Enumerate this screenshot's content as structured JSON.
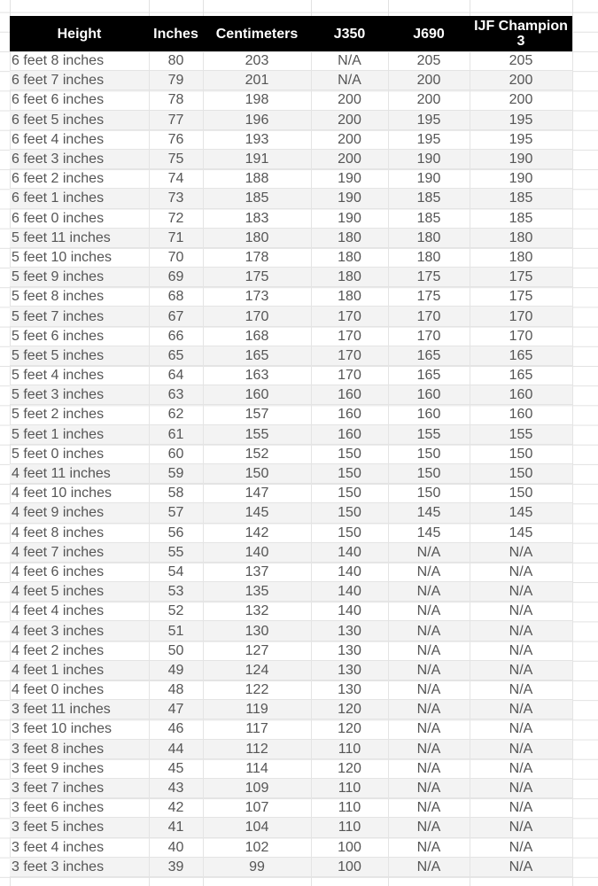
{
  "columns": [
    "Height",
    "Inches",
    "Centimeters",
    "J350",
    "J690",
    "IJF Champion 3"
  ],
  "rows": [
    [
      "6 feet 8 inches",
      "80",
      "203",
      "N/A",
      "205",
      "205"
    ],
    [
      "6 feet 7 inches",
      "79",
      "201",
      "N/A",
      "200",
      "200"
    ],
    [
      "6 feet 6 inches",
      "78",
      "198",
      "200",
      "200",
      "200"
    ],
    [
      "6 feet 5 inches",
      "77",
      "196",
      "200",
      "195",
      "195"
    ],
    [
      "6 feet 4 inches",
      "76",
      "193",
      "200",
      "195",
      "195"
    ],
    [
      "6 feet 3 inches",
      "75",
      "191",
      "200",
      "190",
      "190"
    ],
    [
      "6 feet 2 inches",
      "74",
      "188",
      "190",
      "190",
      "190"
    ],
    [
      "6 feet 1 inches",
      "73",
      "185",
      "190",
      "185",
      "185"
    ],
    [
      "6 feet 0 inches",
      "72",
      "183",
      "190",
      "185",
      "185"
    ],
    [
      "5 feet 11 inches",
      "71",
      "180",
      "180",
      "180",
      "180"
    ],
    [
      "5 feet 10 inches",
      "70",
      "178",
      "180",
      "180",
      "180"
    ],
    [
      "5 feet 9 inches",
      "69",
      "175",
      "180",
      "175",
      "175"
    ],
    [
      "5 feet 8 inches",
      "68",
      "173",
      "180",
      "175",
      "175"
    ],
    [
      "5 feet 7 inches",
      "67",
      "170",
      "170",
      "170",
      "170"
    ],
    [
      "5 feet 6 inches",
      "66",
      "168",
      "170",
      "170",
      "170"
    ],
    [
      "5 feet 5 inches",
      "65",
      "165",
      "170",
      "165",
      "165"
    ],
    [
      "5 feet 4 inches",
      "64",
      "163",
      "170",
      "165",
      "165"
    ],
    [
      "5 feet 3 inches",
      "63",
      "160",
      "160",
      "160",
      "160"
    ],
    [
      "5 feet 2 inches",
      "62",
      "157",
      "160",
      "160",
      "160"
    ],
    [
      "5 feet 1 inches",
      "61",
      "155",
      "160",
      "155",
      "155"
    ],
    [
      "5 feet 0 inches",
      "60",
      "152",
      "150",
      "150",
      "150"
    ],
    [
      "4 feet 11 inches",
      "59",
      "150",
      "150",
      "150",
      "150"
    ],
    [
      "4 feet 10 inches",
      "58",
      "147",
      "150",
      "150",
      "150"
    ],
    [
      "4 feet 9 inches",
      "57",
      "145",
      "150",
      "145",
      "145"
    ],
    [
      "4 feet 8 inches",
      "56",
      "142",
      "150",
      "145",
      "145"
    ],
    [
      "4 feet 7 inches",
      "55",
      "140",
      "140",
      "N/A",
      "N/A"
    ],
    [
      "4 feet 6 inches",
      "54",
      "137",
      "140",
      "N/A",
      "N/A"
    ],
    [
      "4 feet 5 inches",
      "53",
      "135",
      "140",
      "N/A",
      "N/A"
    ],
    [
      "4 feet 4 inches",
      "52",
      "132",
      "140",
      "N/A",
      "N/A"
    ],
    [
      "4 feet 3 inches",
      "51",
      "130",
      "130",
      "N/A",
      "N/A"
    ],
    [
      "4 feet 2 inches",
      "50",
      "127",
      "130",
      "N/A",
      "N/A"
    ],
    [
      "4 feet 1 inches",
      "49",
      "124",
      "130",
      "N/A",
      "N/A"
    ],
    [
      "4 feet 0 inches",
      "48",
      "122",
      "130",
      "N/A",
      "N/A"
    ],
    [
      "3 feet 11 inches",
      "47",
      "119",
      "120",
      "N/A",
      "N/A"
    ],
    [
      "3 feet 10 inches",
      "46",
      "117",
      "120",
      "N/A",
      "N/A"
    ],
    [
      "3 feet 8 inches",
      "44",
      "112",
      "110",
      "N/A",
      "N/A"
    ],
    [
      "3 feet 9 inches",
      "45",
      "114",
      "120",
      "N/A",
      "N/A"
    ],
    [
      "3 feet 7 inches",
      "43",
      "109",
      "110",
      "N/A",
      "N/A"
    ],
    [
      "3 feet 6 inches",
      "42",
      "107",
      "110",
      "N/A",
      "N/A"
    ],
    [
      "3 feet 5 inches",
      "41",
      "104",
      "110",
      "N/A",
      "N/A"
    ],
    [
      "3 feet 4 inches",
      "40",
      "102",
      "100",
      "N/A",
      "N/A"
    ],
    [
      "3 feet 3 inches",
      "39",
      "99",
      "100",
      "N/A",
      "N/A"
    ]
  ]
}
